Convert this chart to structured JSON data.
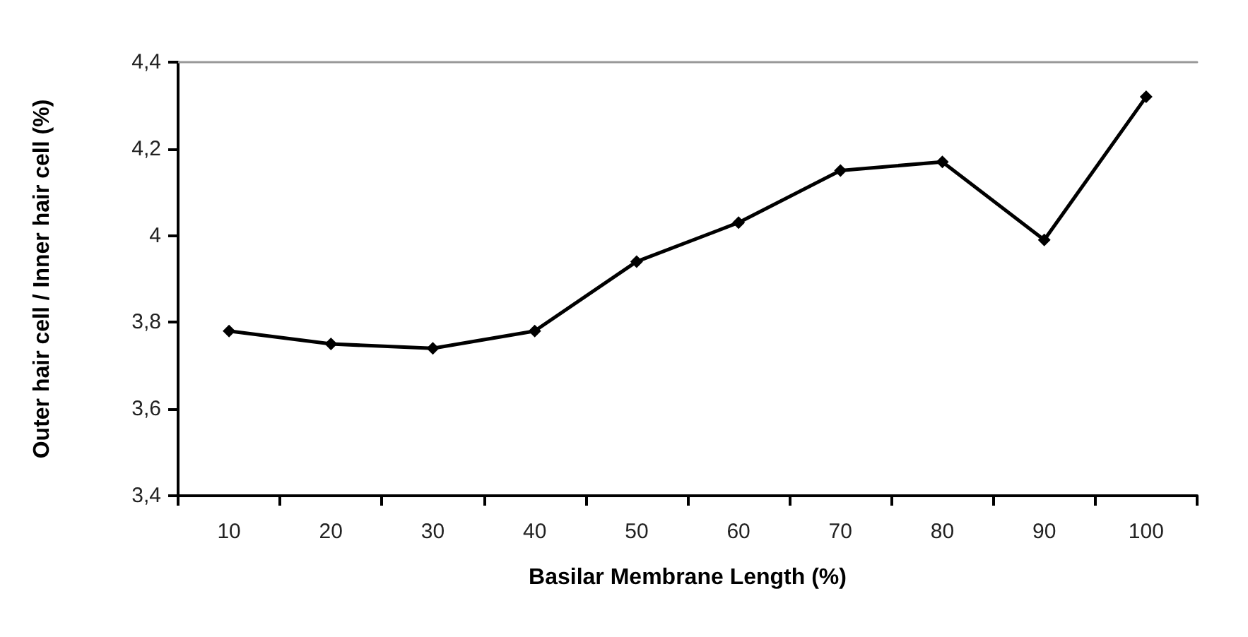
{
  "chart_data": {
    "type": "line",
    "xlabel": "Basilar Membrane Length (%)",
    "ylabel": "Outer hair cell / Inner hair cell (%)",
    "categories": [
      "10",
      "20",
      "30",
      "40",
      "50",
      "60",
      "70",
      "80",
      "90",
      "100"
    ],
    "series": [
      {
        "color": "#000000",
        "values": [
          3.78,
          3.75,
          3.74,
          3.78,
          3.94,
          4.03,
          4.15,
          4.17,
          3.99,
          4.32
        ]
      }
    ],
    "ylim": [
      3.4,
      4.4
    ],
    "yticks": [
      {
        "value": 3.4,
        "label": "3,4"
      },
      {
        "value": 3.6,
        "label": "3,6"
      },
      {
        "value": 3.8,
        "label": "3,8"
      },
      {
        "value": 4,
        "label": "4"
      },
      {
        "value": 4.2,
        "label": "4,2"
      },
      {
        "value": 4.4,
        "label": "4,4"
      }
    ],
    "marker": "diamond",
    "line_style": "solid"
  }
}
